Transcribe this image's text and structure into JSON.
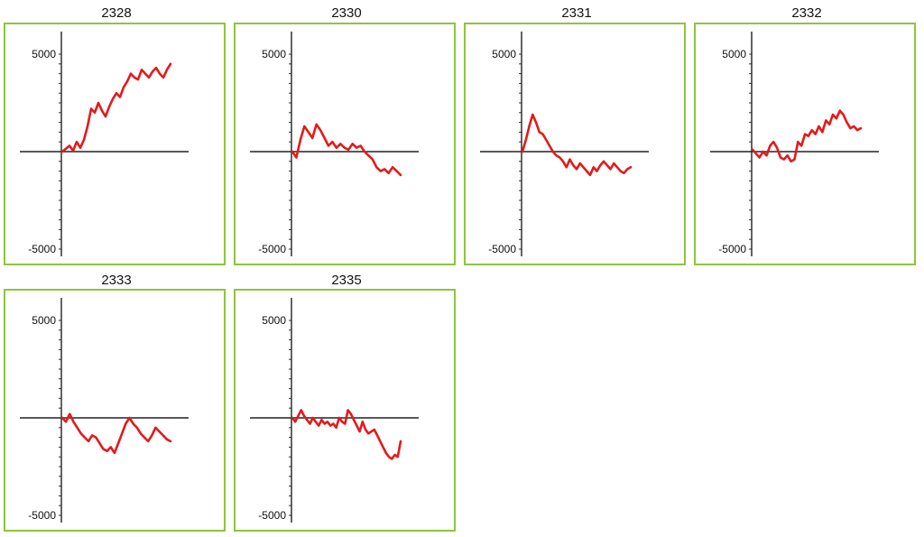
{
  "chart_data": [
    {
      "type": "line",
      "title": "2328",
      "ylim": [
        -5000,
        5000
      ],
      "yticks": [
        "5000",
        "-5000"
      ],
      "color": "#e31a1c",
      "x": [
        0,
        1,
        2,
        3,
        4,
        5,
        6,
        7,
        8,
        9,
        10,
        11,
        12,
        13,
        14,
        15,
        16,
        17,
        18,
        19,
        20,
        21,
        22,
        23,
        24,
        25,
        26,
        27,
        28,
        29,
        30
      ],
      "values": [
        0,
        150,
        300,
        50,
        500,
        200,
        600,
        1300,
        2200,
        2000,
        2500,
        2100,
        1800,
        2300,
        2700,
        3000,
        2800,
        3300,
        3600,
        4000,
        3800,
        3700,
        4200,
        4000,
        3800,
        4100,
        4300,
        4000,
        3800,
        4200,
        4500
      ]
    },
    {
      "type": "line",
      "title": "2330",
      "ylim": [
        -5000,
        5000
      ],
      "yticks": [
        "5000",
        "-5000"
      ],
      "color": "#e31a1c",
      "x": [
        0,
        1,
        2,
        3,
        4,
        5,
        6,
        7,
        8,
        9,
        10,
        11,
        12,
        13,
        14,
        15,
        16,
        17,
        18,
        19,
        20,
        21,
        22,
        23,
        24,
        25,
        26,
        27
      ],
      "values": [
        0,
        -300,
        600,
        1300,
        1000,
        700,
        1400,
        1100,
        700,
        300,
        500,
        200,
        400,
        200,
        100,
        400,
        200,
        300,
        0,
        -200,
        -400,
        -800,
        -1000,
        -900,
        -1100,
        -800,
        -1000,
        -1200
      ]
    },
    {
      "type": "line",
      "title": "2331",
      "ylim": [
        -5000,
        5000
      ],
      "yticks": [
        "5000",
        "-5000"
      ],
      "color": "#e31a1c",
      "x": [
        0,
        1,
        2,
        3,
        4,
        5,
        6,
        7,
        8,
        9,
        10,
        11,
        12,
        13,
        14,
        15,
        16,
        17,
        18,
        19,
        20,
        21,
        22,
        23,
        24,
        25,
        26,
        27,
        28,
        29,
        30,
        31,
        32
      ],
      "values": [
        0,
        600,
        1300,
        1900,
        1500,
        1000,
        900,
        600,
        300,
        0,
        -200,
        -300,
        -500,
        -800,
        -400,
        -700,
        -900,
        -600,
        -800,
        -1000,
        -1200,
        -800,
        -1000,
        -700,
        -500,
        -700,
        -900,
        -600,
        -800,
        -1000,
        -1100,
        -900,
        -800
      ]
    },
    {
      "type": "line",
      "title": "2332",
      "ylim": [
        -5000,
        5000
      ],
      "yticks": [
        "5000",
        "-5000"
      ],
      "color": "#e31a1c",
      "x": [
        0,
        1,
        2,
        3,
        4,
        5,
        6,
        7,
        8,
        9,
        10,
        11,
        12,
        13,
        14,
        15,
        16,
        17,
        18,
        19,
        20,
        21,
        22,
        23,
        24,
        25,
        26,
        27,
        28,
        29,
        30,
        31
      ],
      "values": [
        100,
        -100,
        -300,
        0,
        -200,
        300,
        500,
        200,
        -300,
        -400,
        -200,
        -500,
        -400,
        500,
        300,
        900,
        800,
        1100,
        900,
        1300,
        1000,
        1600,
        1400,
        1900,
        1700,
        2100,
        1900,
        1500,
        1200,
        1300,
        1100,
        1200
      ]
    },
    {
      "type": "line",
      "title": "2333",
      "ylim": [
        -5000,
        5000
      ],
      "yticks": [
        "5000",
        "-5000"
      ],
      "color": "#e31a1c",
      "x": [
        0,
        1,
        2,
        3,
        4,
        5,
        6,
        7,
        8,
        9,
        10,
        11,
        12,
        13,
        14,
        15,
        16,
        17,
        18,
        19,
        20,
        21,
        22,
        23,
        24,
        25,
        26,
        27,
        28,
        29
      ],
      "values": [
        0,
        -200,
        200,
        -200,
        -500,
        -800,
        -1000,
        -1200,
        -900,
        -1000,
        -1300,
        -1600,
        -1700,
        -1500,
        -1800,
        -1300,
        -800,
        -300,
        0,
        -300,
        -500,
        -800,
        -1000,
        -1200,
        -900,
        -500,
        -700,
        -900,
        -1100,
        -1200
      ]
    },
    {
      "type": "line",
      "title": "2335",
      "ylim": [
        -5000,
        5000
      ],
      "yticks": [
        "5000",
        "-5000"
      ],
      "color": "#e31a1c",
      "x": [
        0,
        1,
        2,
        3,
        4,
        5,
        6,
        7,
        8,
        9,
        10,
        11,
        12,
        13,
        14,
        15,
        16,
        17,
        18,
        19,
        20,
        21,
        22,
        23,
        24,
        25,
        26,
        27,
        28,
        29,
        30,
        31,
        32,
        33,
        34,
        35,
        36,
        37
      ],
      "values": [
        0,
        -200,
        100,
        400,
        100,
        -100,
        -300,
        0,
        -200,
        -400,
        -100,
        -300,
        -200,
        -400,
        -300,
        -500,
        0,
        -200,
        -300,
        400,
        200,
        -100,
        -400,
        -700,
        -200,
        -600,
        -800,
        -700,
        -600,
        -900,
        -1200,
        -1500,
        -1800,
        -2000,
        -2100,
        -1900,
        -2000,
        -1200
      ]
    }
  ]
}
